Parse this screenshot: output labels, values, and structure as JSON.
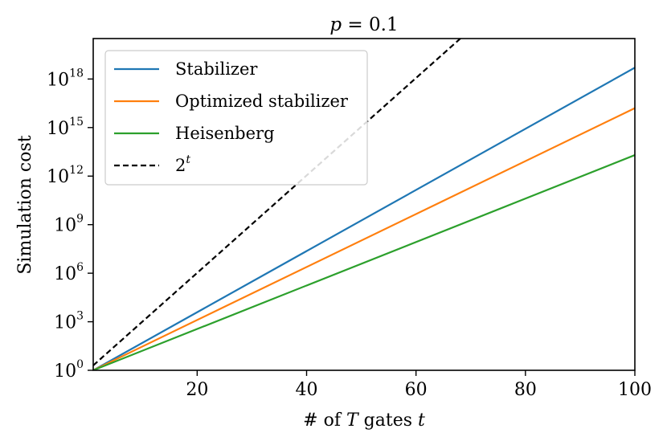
{
  "chart_data": {
    "type": "line",
    "title": "p = 0.1",
    "title_parts": {
      "var": "p",
      "rest": " = 0.1"
    },
    "xlabel": "# of T gates t",
    "xlabel_parts": {
      "pre": "# of ",
      "var1": "T",
      "mid": " gates ",
      "var2": "t"
    },
    "ylabel": "Simulation cost",
    "y_scale": "log10",
    "xlim": [
      1,
      100
    ],
    "ylim_log10": [
      0,
      20.5
    ],
    "x_ticks": [
      20,
      40,
      60,
      80,
      100
    ],
    "y_ticks": [
      {
        "base": "10",
        "exp": "0",
        "value_log10": 0
      },
      {
        "base": "10",
        "exp": "3",
        "value_log10": 3
      },
      {
        "base": "10",
        "exp": "6",
        "value_log10": 6
      },
      {
        "base": "10",
        "exp": "9",
        "value_log10": 9
      },
      {
        "base": "10",
        "exp": "12",
        "value_log10": 12
      },
      {
        "base": "10",
        "exp": "15",
        "value_log10": 15
      },
      {
        "base": "10",
        "exp": "18",
        "value_log10": 18
      }
    ],
    "grid": false,
    "legend_position": "upper-left",
    "series": [
      {
        "name": "Stabilizer",
        "color": "#1f77b4",
        "dash": "solid",
        "x": [
          1,
          100
        ],
        "y_log10": [
          0.0,
          18.7
        ]
      },
      {
        "name": "Optimized stabilizer",
        "color": "#ff7f0e",
        "dash": "solid",
        "x": [
          1,
          100
        ],
        "y_log10": [
          0.0,
          16.2
        ]
      },
      {
        "name": "Heisenberg",
        "color": "#2ca02c",
        "dash": "solid",
        "x": [
          1,
          100
        ],
        "y_log10": [
          0.0,
          13.3
        ]
      },
      {
        "name": "2^t",
        "label_base": "2",
        "label_exp": "t",
        "color": "#000000",
        "dash": "dashed",
        "x": [
          1,
          100
        ],
        "y_log10": [
          0.301,
          30.103
        ]
      }
    ]
  }
}
